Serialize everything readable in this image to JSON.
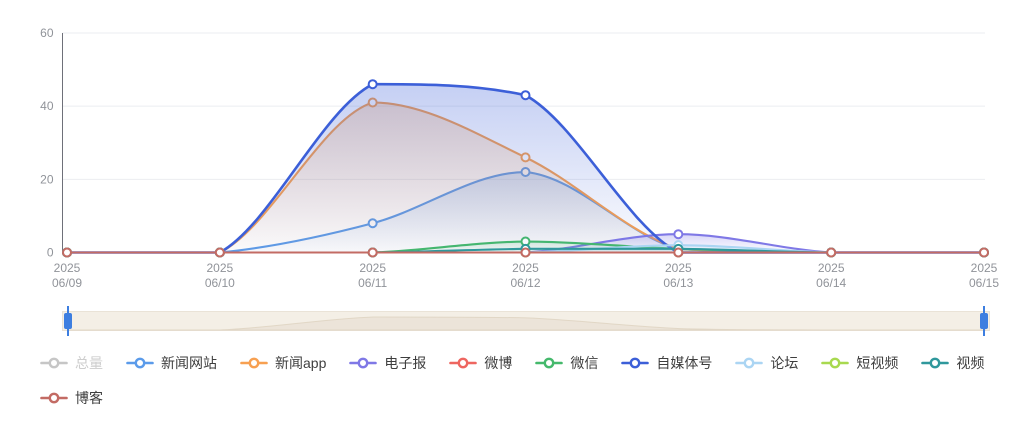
{
  "chart_data": {
    "type": "line",
    "title": "",
    "smooth": true,
    "grid": true,
    "legend_position": "bottom",
    "year_line": "2025",
    "categories": [
      "06/09",
      "06/10",
      "06/11",
      "06/12",
      "06/13",
      "06/14",
      "06/15"
    ],
    "ylim": [
      0,
      60
    ],
    "yticks": [
      0,
      20,
      40,
      60
    ],
    "axis": {
      "label_color": "#909399",
      "axis_line_color": "#6e7079",
      "grid_line_color": "#ebedf0"
    },
    "series": [
      {
        "id": "total",
        "name": "总量",
        "color": "#c6c6c6",
        "selected": false,
        "area": false,
        "values": null
      },
      {
        "id": "news-site",
        "name": "新闻网站",
        "color": "#5b9bea",
        "selected": true,
        "area": true,
        "values": [
          0,
          0,
          8,
          22,
          1,
          0,
          0
        ]
      },
      {
        "id": "news-app",
        "name": "新闻app",
        "color": "#f7a051",
        "selected": true,
        "area": true,
        "values": [
          0,
          0,
          41,
          26,
          1,
          0,
          0
        ]
      },
      {
        "id": "epaper",
        "name": "电子报",
        "color": "#7f78e6",
        "selected": true,
        "area": true,
        "values": [
          0,
          0,
          0,
          0,
          5,
          0,
          0
        ]
      },
      {
        "id": "weibo",
        "name": "微博",
        "color": "#ee6660",
        "selected": true,
        "area": false,
        "values": [
          0,
          0,
          0,
          0,
          0,
          0,
          0
        ]
      },
      {
        "id": "wechat",
        "name": "微信",
        "color": "#45b96c",
        "selected": true,
        "area": true,
        "values": [
          0,
          0,
          0,
          3,
          1,
          0,
          0
        ]
      },
      {
        "id": "self-media",
        "name": "自媒体号",
        "color": "#3c5fd8",
        "selected": true,
        "area": true,
        "values": [
          0,
          0,
          46,
          43,
          0,
          0,
          0
        ]
      },
      {
        "id": "forum",
        "name": "论坛",
        "color": "#abd5f3",
        "selected": true,
        "area": true,
        "values": [
          0,
          0,
          0,
          0,
          2,
          0,
          0
        ]
      },
      {
        "id": "short-video",
        "name": "短视频",
        "color": "#a8d94f",
        "selected": true,
        "area": false,
        "values": [
          0,
          0,
          0,
          0,
          0,
          0,
          0
        ]
      },
      {
        "id": "video",
        "name": "视频",
        "color": "#2f989c",
        "selected": true,
        "area": true,
        "values": [
          0,
          0,
          0,
          1,
          1,
          0,
          0
        ]
      },
      {
        "id": "blog",
        "name": "博客",
        "color": "#c36b64",
        "selected": true,
        "area": false,
        "values": [
          0,
          0,
          0,
          0,
          0,
          0,
          0
        ]
      }
    ],
    "datazoom": {
      "track_color": "#f4efe6",
      "shadow_color": "#ddd2bf",
      "handle_color": "#3d7ee0",
      "range_start": "06/09",
      "range_end": "06/15"
    }
  }
}
